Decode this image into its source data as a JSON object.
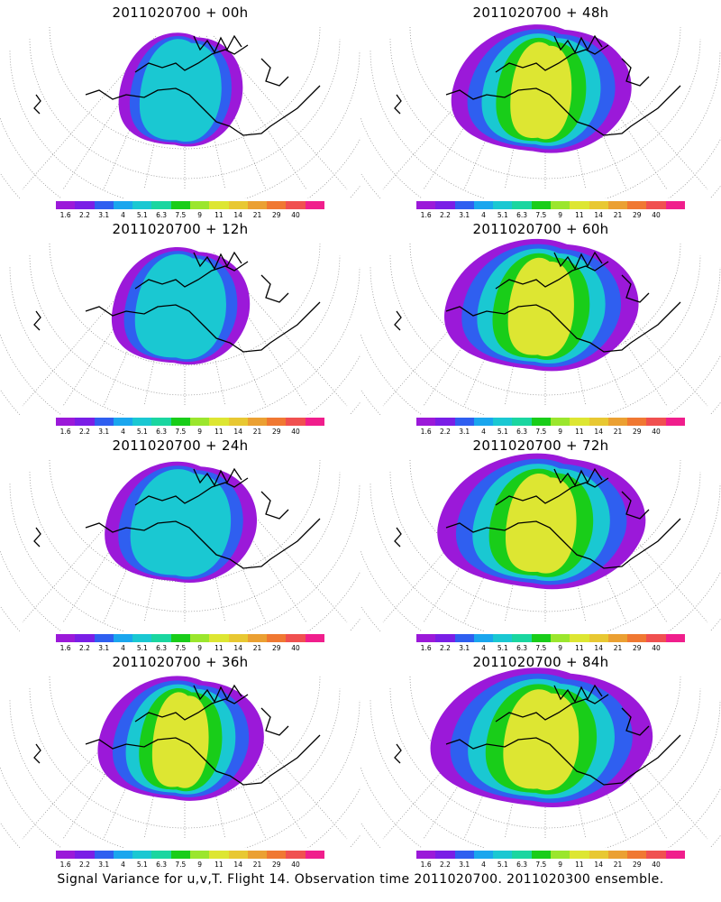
{
  "panels": [
    {
      "title": "2011020700 + 00h",
      "level": 1
    },
    {
      "title": "2011020700 + 48h",
      "level": 5
    },
    {
      "title": "2011020700 + 12h",
      "level": 2
    },
    {
      "title": "2011020700 + 60h",
      "level": 6
    },
    {
      "title": "2011020700 + 24h",
      "level": 3
    },
    {
      "title": "2011020700 + 72h",
      "level": 7
    },
    {
      "title": "2011020700 + 36h",
      "level": 4
    },
    {
      "title": "2011020700 + 84h",
      "level": 8
    }
  ],
  "colorbar": {
    "colors": [
      "#9b19d9",
      "#7a1ee6",
      "#2f5ff0",
      "#1aa6ee",
      "#1ac8d2",
      "#1ad6a0",
      "#19cd19",
      "#9be62d",
      "#dde632",
      "#e8c832",
      "#eba032",
      "#f07832",
      "#f05050",
      "#f01e8c"
    ],
    "labels": [
      "1.6",
      "2.2",
      "3.1",
      "4",
      "5.1",
      "6.3",
      "7.5",
      "9",
      "11",
      "14",
      "21",
      "29",
      "40"
    ]
  },
  "caption": "Signal Variance for u,v,T. Flight 14. Observation time 2011020700. 2011020300 ensemble."
}
